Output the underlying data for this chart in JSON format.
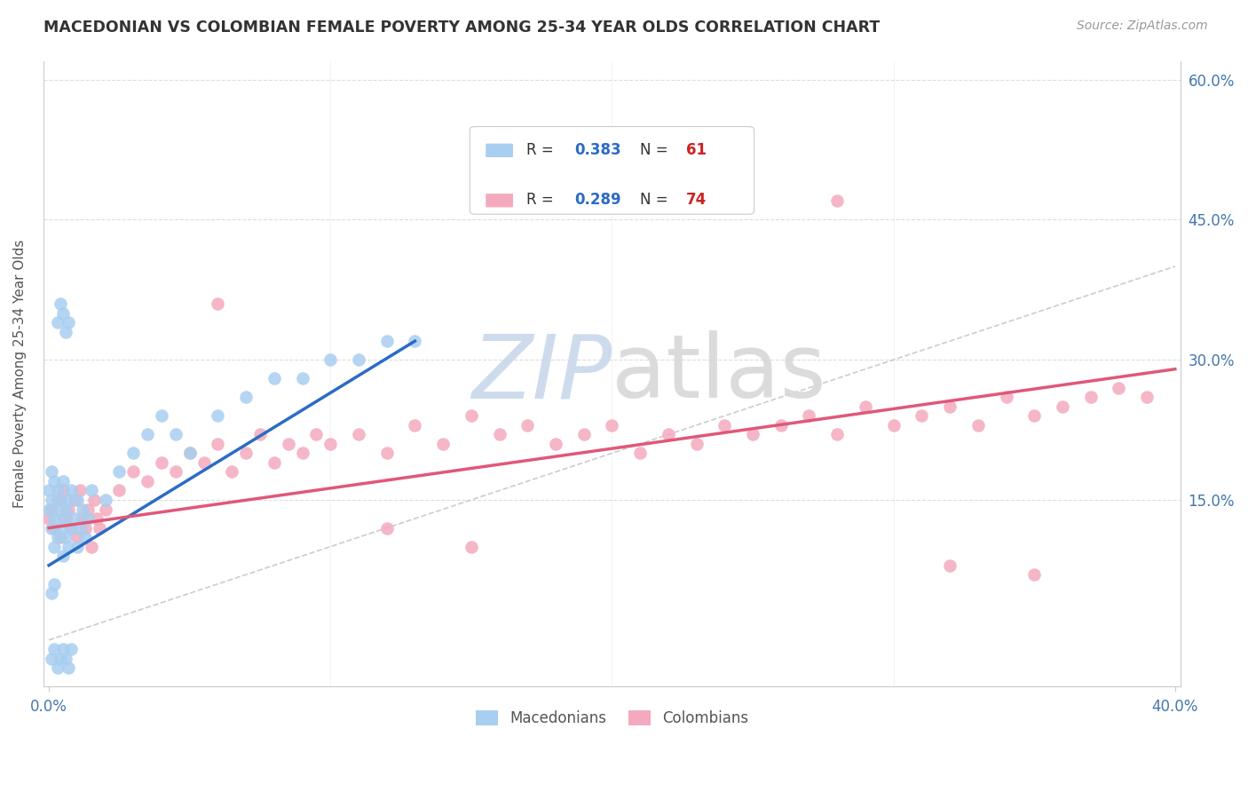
{
  "title": "MACEDONIAN VS COLOMBIAN FEMALE POVERTY AMONG 25-34 YEAR OLDS CORRELATION CHART",
  "source": "Source: ZipAtlas.com",
  "ylabel": "Female Poverty Among 25-34 Year Olds",
  "legend_macedonians": "Macedonians",
  "legend_colombians": "Colombians",
  "r_macedonian": 0.383,
  "n_macedonian": 61,
  "r_colombian": 0.289,
  "n_colombian": 74,
  "xlim": [
    -0.002,
    0.402
  ],
  "ylim": [
    -0.05,
    0.62
  ],
  "yticks": [
    0.0,
    0.15,
    0.3,
    0.45,
    0.6
  ],
  "ytick_labels_right": [
    "",
    "15.0%",
    "30.0%",
    "45.0%",
    "60.0%"
  ],
  "color_macedonian": "#A8CEF0",
  "color_colombian": "#F4AABE",
  "color_line_macedonian": "#2B6CC4",
  "color_line_colombian": "#E05878",
  "color_ref_line": "#C0C0C0",
  "color_title": "#333333",
  "color_source": "#999999",
  "color_r_value": "#2B6CC4",
  "color_n_value": "#CC2222",
  "background_color": "#FFFFFF",
  "color_grid": "#DDDDDD",
  "color_axis": "#CCCCCC",
  "mac_trend_x": [
    0.0,
    0.13
  ],
  "mac_trend_y": [
    0.08,
    0.32
  ],
  "col_trend_x": [
    0.0,
    0.4
  ],
  "col_trend_y": [
    0.12,
    0.29
  ],
  "ref_line_x": [
    0.0,
    0.4
  ],
  "ref_line_y": [
    0.0,
    0.4
  ],
  "watermark": "ZIPatlas",
  "watermark_zip_color": "#C8D8EC",
  "watermark_atlas_color": "#D8D8D8"
}
